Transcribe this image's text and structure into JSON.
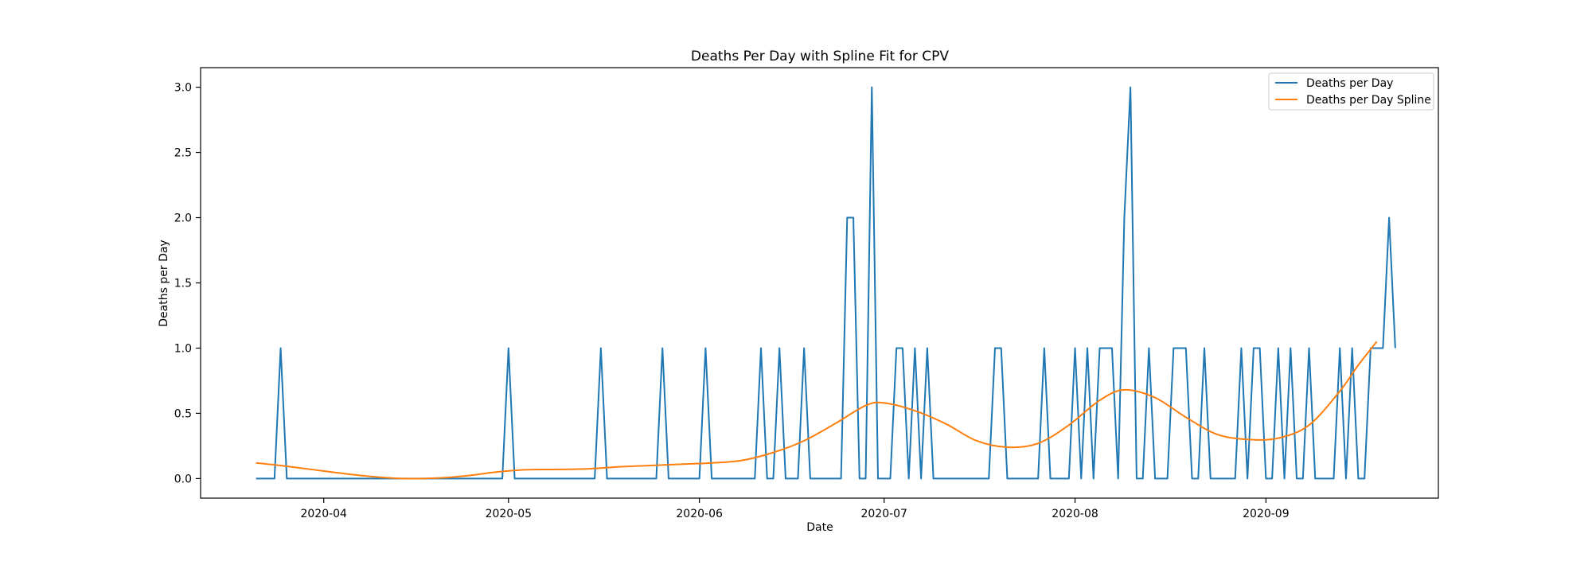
{
  "chart_data": {
    "type": "line",
    "title": "Deaths Per Day with Spline Fit for CPV",
    "xlabel": "Date",
    "ylabel": "Deaths per Day",
    "x_start": "2020-03-21",
    "x_end": "2020-09-19",
    "xlim": [
      "2020-03-12",
      "2020-09-29"
    ],
    "ylim": [
      -0.15,
      3.15
    ],
    "xticks": [
      "2020-04-01",
      "2020-05-01",
      "2020-06-01",
      "2020-07-01",
      "2020-08-01",
      "2020-09-01"
    ],
    "xtick_labels": [
      "2020-04",
      "2020-05",
      "2020-06",
      "2020-07",
      "2020-08",
      "2020-09"
    ],
    "yticks": [
      0.0,
      0.5,
      1.0,
      1.5,
      2.0,
      2.5,
      3.0
    ],
    "ytick_labels": [
      "0.0",
      "0.5",
      "1.0",
      "1.5",
      "2.0",
      "2.5",
      "3.0"
    ],
    "grid": false,
    "legend_position": "top-right",
    "series": [
      {
        "name": "Deaths per Day",
        "color": "#1f77b4",
        "values": [
          0,
          0,
          0,
          0,
          1,
          0,
          0,
          0,
          0,
          0,
          0,
          0,
          0,
          0,
          0,
          0,
          0,
          0,
          0,
          0,
          0,
          0,
          0,
          0,
          0,
          0,
          0,
          0,
          0,
          0,
          0,
          0,
          0,
          0,
          0,
          0,
          0,
          0,
          0,
          0,
          0,
          1,
          0,
          0,
          0,
          0,
          0,
          0,
          0,
          0,
          0,
          0,
          0,
          0,
          0,
          0,
          1,
          0,
          0,
          0,
          0,
          0,
          0,
          0,
          0,
          0,
          1,
          0,
          0,
          0,
          0,
          0,
          0,
          1,
          0,
          0,
          0,
          0,
          0,
          0,
          0,
          0,
          1,
          0,
          0,
          1,
          0,
          0,
          0,
          1,
          0,
          0,
          0,
          0,
          0,
          0,
          2,
          2,
          0,
          0,
          3,
          0,
          0,
          0,
          1,
          1,
          0,
          1,
          0,
          1,
          0,
          0,
          0,
          0,
          0,
          0,
          0,
          0,
          0,
          0,
          1,
          1,
          0,
          0,
          0,
          0,
          0,
          0,
          1,
          0,
          0,
          0,
          0,
          1,
          0,
          1,
          0,
          1,
          1,
          1,
          0,
          2,
          3,
          0,
          0,
          1,
          0,
          0,
          0,
          1,
          1,
          1,
          0,
          0,
          1,
          0,
          0,
          0,
          0,
          0,
          1,
          0,
          1,
          1,
          0,
          0,
          1,
          0,
          1,
          0,
          0,
          1,
          0,
          0,
          0,
          0,
          1,
          0,
          1,
          0,
          0,
          1,
          1,
          1,
          2,
          1
        ]
      },
      {
        "name": "Deaths per Day Spline",
        "color": "#ff7f0e",
        "knots": [
          [
            "2020-03-21",
            0.12
          ],
          [
            "2020-03-25",
            0.1
          ],
          [
            "2020-03-30",
            0.07
          ],
          [
            "2020-04-04",
            0.04
          ],
          [
            "2020-04-09",
            0.015
          ],
          [
            "2020-04-14",
            0.0
          ],
          [
            "2020-04-19",
            0.003
          ],
          [
            "2020-04-24",
            0.02
          ],
          [
            "2020-04-29",
            0.05
          ],
          [
            "2020-05-04",
            0.068
          ],
          [
            "2020-05-09",
            0.07
          ],
          [
            "2020-05-14",
            0.075
          ],
          [
            "2020-05-19",
            0.09
          ],
          [
            "2020-05-24",
            0.1
          ],
          [
            "2020-05-29",
            0.11
          ],
          [
            "2020-06-03",
            0.12
          ],
          [
            "2020-06-08",
            0.14
          ],
          [
            "2020-06-13",
            0.2
          ],
          [
            "2020-06-18",
            0.29
          ],
          [
            "2020-06-23",
            0.42
          ],
          [
            "2020-06-28",
            0.56
          ],
          [
            "2020-07-01",
            0.58
          ],
          [
            "2020-07-06",
            0.52
          ],
          [
            "2020-07-11",
            0.42
          ],
          [
            "2020-07-16",
            0.29
          ],
          [
            "2020-07-21",
            0.24
          ],
          [
            "2020-07-26",
            0.27
          ],
          [
            "2020-07-31",
            0.41
          ],
          [
            "2020-08-05",
            0.6
          ],
          [
            "2020-08-09",
            0.68
          ],
          [
            "2020-08-14",
            0.62
          ],
          [
            "2020-08-19",
            0.47
          ],
          [
            "2020-08-24",
            0.34
          ],
          [
            "2020-08-29",
            0.3
          ],
          [
            "2020-09-03",
            0.31
          ],
          [
            "2020-09-08",
            0.41
          ],
          [
            "2020-09-13",
            0.67
          ],
          [
            "2020-09-16",
            0.87
          ],
          [
            "2020-09-19",
            1.05
          ]
        ]
      }
    ]
  }
}
